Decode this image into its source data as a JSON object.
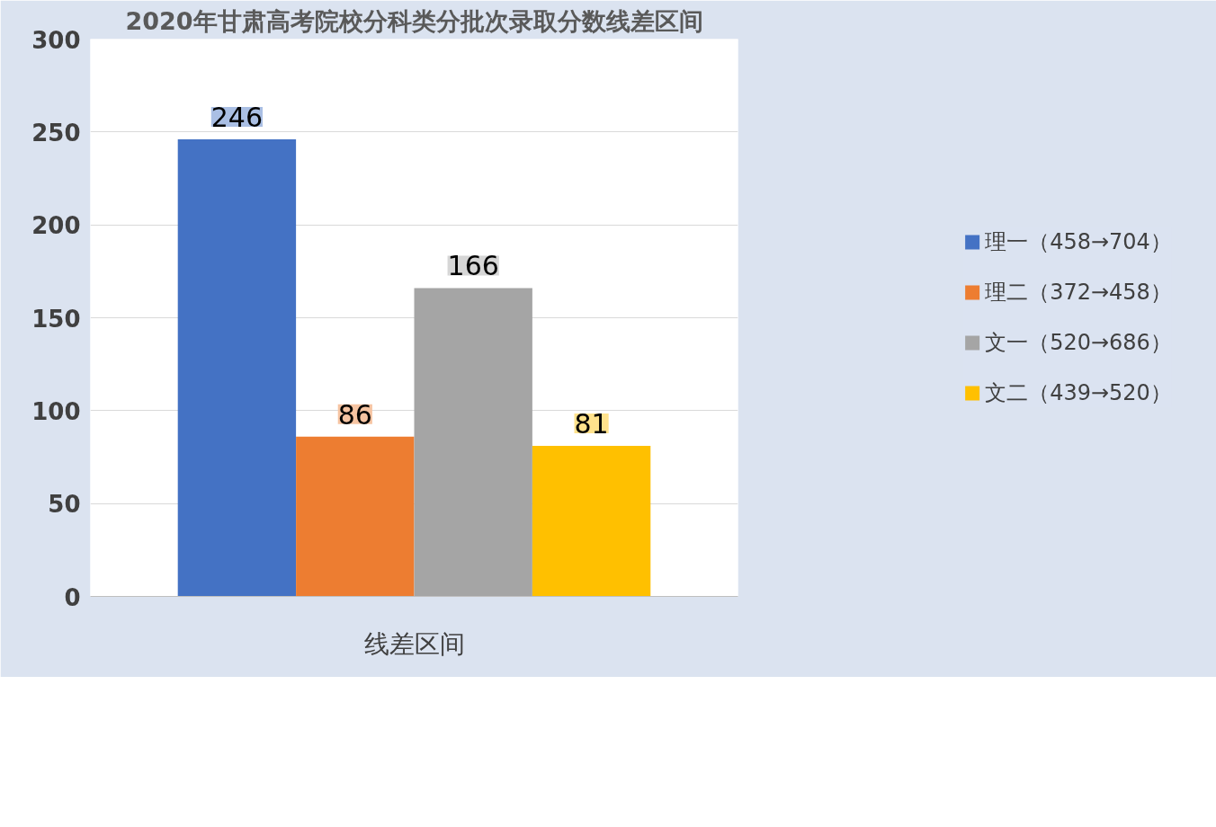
{
  "chart_data": {
    "type": "bar",
    "title": "2020年甘肃高考院校分科类分批次录取分数线差区间",
    "categories": [
      "线差区间"
    ],
    "series": [
      {
        "name": "理一（458→704）",
        "color": "#4472c4",
        "values": [
          246
        ]
      },
      {
        "name": "理二（372→458）",
        "color": "#ed7d31",
        "values": [
          86
        ]
      },
      {
        "name": "文一（520→686）",
        "color": "#a5a5a5",
        "values": [
          166
        ]
      },
      {
        "name": "文二（439→520）",
        "color": "#ffc000",
        "values": [
          81
        ]
      }
    ],
    "ylim": [
      0,
      300
    ],
    "yticks": [
      0,
      50,
      100,
      150,
      200,
      250,
      300
    ],
    "grid": "y",
    "legend": "right",
    "data_labels": true
  }
}
